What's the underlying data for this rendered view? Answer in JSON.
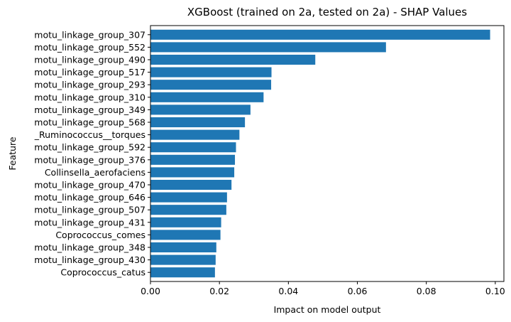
{
  "chart_data": {
    "type": "bar",
    "orientation": "horizontal",
    "title": "XGBoost (trained on 2a, tested on 2a) -  SHAP Values",
    "xlabel": "Impact on model output",
    "ylabel": "Feature",
    "xlim": [
      0,
      0.1025
    ],
    "xticks": [
      0.0,
      0.02,
      0.04,
      0.06,
      0.08,
      0.1
    ],
    "xtick_labels": [
      "0.00",
      "0.02",
      "0.04",
      "0.06",
      "0.08",
      "0.10"
    ],
    "grid": false,
    "bar_color": "#1f77b4",
    "categories": [
      "motu_linkage_group_307",
      "motu_linkage_group_552",
      "motu_linkage_group_490",
      "motu_linkage_group_517",
      "motu_linkage_group_293",
      "motu_linkage_group_310",
      "motu_linkage_group_349",
      "motu_linkage_group_568",
      "_Ruminococcus__torques",
      "motu_linkage_group_592",
      "motu_linkage_group_376",
      "Collinsella_aerofaciens",
      "motu_linkage_group_470",
      "motu_linkage_group_646",
      "motu_linkage_group_507",
      "motu_linkage_group_431",
      "Coprococcus_comes",
      "motu_linkage_group_348",
      "motu_linkage_group_430",
      "Coprococcus_catus"
    ],
    "values": [
      0.0985,
      0.0683,
      0.0478,
      0.0351,
      0.035,
      0.0328,
      0.029,
      0.0274,
      0.0258,
      0.0248,
      0.0245,
      0.0243,
      0.0235,
      0.0222,
      0.022,
      0.0205,
      0.0203,
      0.0191,
      0.0189,
      0.0187
    ]
  }
}
